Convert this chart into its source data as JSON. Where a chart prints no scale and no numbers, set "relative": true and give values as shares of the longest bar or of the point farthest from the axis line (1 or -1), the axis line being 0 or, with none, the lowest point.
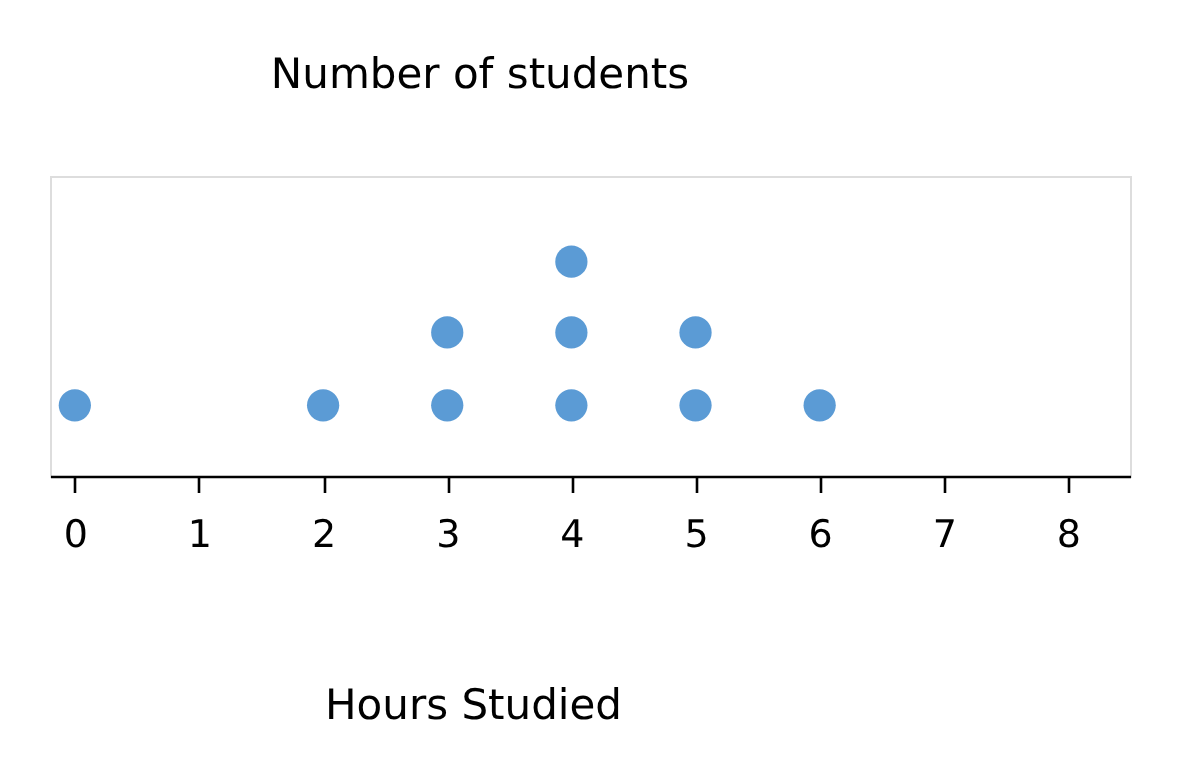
{
  "chart_data": {
    "type": "scatter",
    "title": "Number of students",
    "xlabel": "Hours Studied",
    "relative": true,
    "marker": "circle",
    "xlim": [
      -0.2,
      8.5
    ],
    "xticks": [
      0,
      1,
      2,
      3,
      4,
      5,
      6,
      7,
      8
    ],
    "series": [
      {
        "color": "#5b9bd5",
        "x": [
          0,
          2,
          3,
          3,
          4,
          4,
          4,
          5,
          5,
          6
        ],
        "values": [
          0.33,
          0.33,
          0.33,
          0.67,
          0.33,
          0.67,
          1,
          0.33,
          0.67,
          0.33
        ]
      }
    ]
  }
}
